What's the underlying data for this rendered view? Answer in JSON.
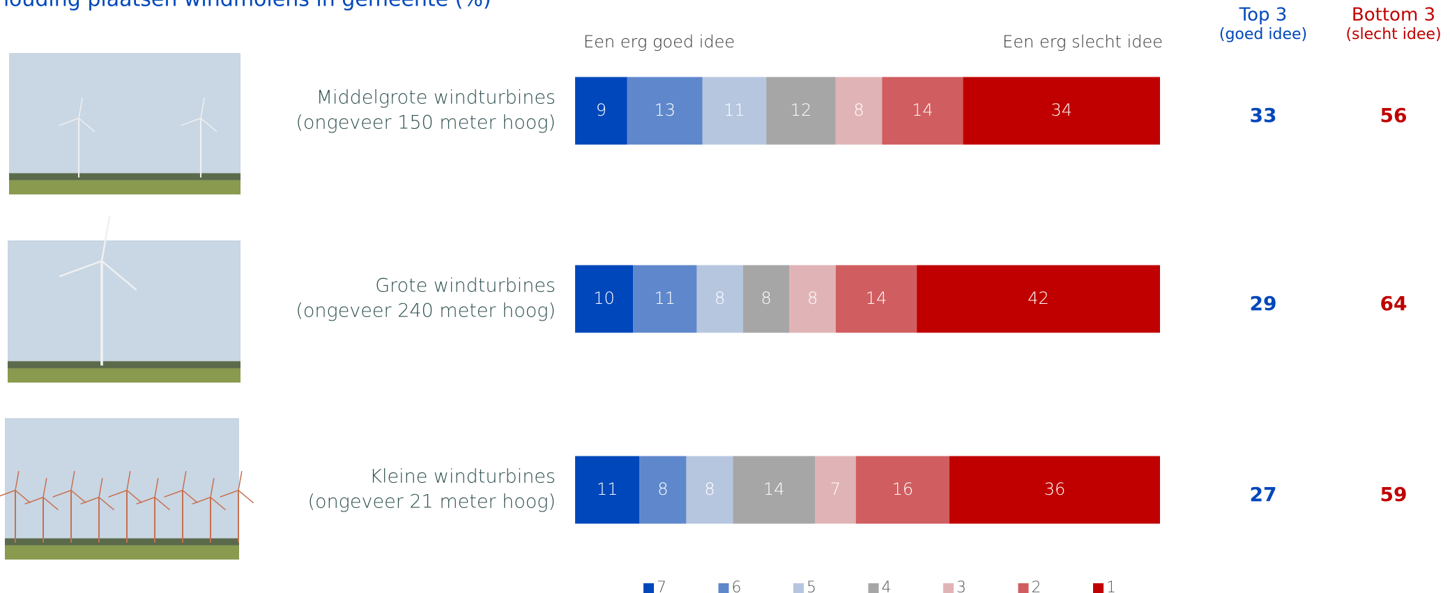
{
  "chart_data": {
    "type": "stacked-bar-horizontal",
    "title": "houding plaatsen windmolens in gemeente (%)",
    "scale_left_label": "Een erg goed idee",
    "scale_right_label": "Een erg slecht idee",
    "categories": [
      [
        "Middelgrote windturbines",
        "(ongeveer 150 meter hoog)"
      ],
      [
        "Grote windturbines",
        "(ongeveer 240 meter hoog)"
      ],
      [
        "Kleine windturbines",
        "(ongeveer 21 meter hoog)"
      ]
    ],
    "series": [
      {
        "name": "7",
        "color": "#0047bb",
        "values": [
          9,
          10,
          11
        ]
      },
      {
        "name": "6",
        "color": "#5f88cc",
        "values": [
          13,
          11,
          8
        ]
      },
      {
        "name": "5",
        "color": "#b7c6df",
        "values": [
          11,
          8,
          8
        ]
      },
      {
        "name": "4",
        "color": "#a6a6a6",
        "values": [
          12,
          8,
          14
        ]
      },
      {
        "name": "3",
        "color": "#e0b4b6",
        "values": [
          8,
          8,
          7
        ]
      },
      {
        "name": "2",
        "color": "#d05d5f",
        "values": [
          14,
          14,
          16
        ]
      },
      {
        "name": "1",
        "color": "#c00000",
        "values": [
          34,
          42,
          36
        ]
      }
    ],
    "summary": [
      {
        "title": "Top 3",
        "subtitle": "(goed idee)",
        "color": "#0047bb",
        "values": [
          33,
          29,
          27
        ]
      },
      {
        "title": "Bottom 3",
        "subtitle": "(slecht idee)",
        "color": "#c00000",
        "values": [
          56,
          64,
          59
        ]
      }
    ]
  }
}
